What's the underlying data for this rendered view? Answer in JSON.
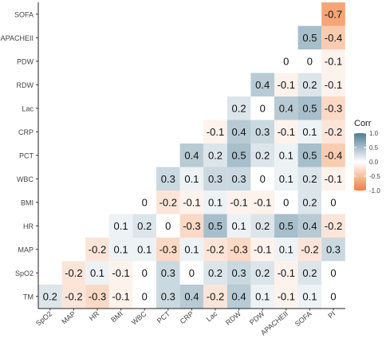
{
  "chart_data": {
    "type": "heatmap",
    "x_categories": [
      "SpO2",
      "MAP",
      "HR",
      "BMI",
      "WBC",
      "PCT",
      "CRP",
      "Lac",
      "RDW",
      "PDW",
      "APACHEII",
      "SOFA",
      "PI"
    ],
    "y_categories": [
      "TM",
      "SpO2",
      "MAP",
      "HR",
      "BMI",
      "WBC",
      "PCT",
      "CRP",
      "Lac",
      "RDW",
      "PDW",
      "APACHEII",
      "SOFA"
    ],
    "values": [
      [
        0.2,
        -0.2,
        -0.3,
        -0.1,
        0,
        0.3,
        0.4,
        -0.2,
        0.4,
        0.1,
        -0.1,
        0.1,
        0
      ],
      [
        null,
        -0.2,
        0.1,
        -0.1,
        0,
        0.3,
        0,
        0.2,
        0.3,
        0.2,
        -0.1,
        0.2,
        0
      ],
      [
        null,
        null,
        -0.2,
        0.1,
        0.1,
        -0.3,
        0.1,
        -0.2,
        -0.3,
        -0.1,
        0.1,
        -0.2,
        0.3
      ],
      [
        null,
        null,
        null,
        0.1,
        0.2,
        0,
        -0.3,
        0.5,
        0.1,
        0.2,
        0.5,
        0.4,
        -0.2
      ],
      [
        null,
        null,
        null,
        null,
        0,
        -0.2,
        -0.1,
        0.1,
        -0.1,
        -0.1,
        0,
        0.2,
        0
      ],
      [
        null,
        null,
        null,
        null,
        null,
        0.3,
        0.1,
        0.3,
        0.3,
        0,
        0.1,
        0.2,
        -0.1
      ],
      [
        null,
        null,
        null,
        null,
        null,
        null,
        0.4,
        0.2,
        0.5,
        0.2,
        0.1,
        0.5,
        -0.4
      ],
      [
        null,
        null,
        null,
        null,
        null,
        null,
        null,
        -0.1,
        0.4,
        0.3,
        -0.1,
        0.1,
        -0.2
      ],
      [
        null,
        null,
        null,
        null,
        null,
        null,
        null,
        null,
        0.2,
        0,
        0.4,
        0.5,
        -0.3
      ],
      [
        null,
        null,
        null,
        null,
        null,
        null,
        null,
        null,
        null,
        0.4,
        -0.1,
        0.2,
        -0.1
      ],
      [
        null,
        null,
        null,
        null,
        null,
        null,
        null,
        null,
        null,
        null,
        0,
        0,
        -0.1
      ],
      [
        null,
        null,
        null,
        null,
        null,
        null,
        null,
        null,
        null,
        null,
        null,
        0.5,
        -0.4
      ],
      [
        null,
        null,
        null,
        null,
        null,
        null,
        null,
        null,
        null,
        null,
        null,
        null,
        -0.7
      ]
    ],
    "legend": {
      "title": "Corr",
      "ticks": [
        "1.0",
        "0.5",
        "0.0",
        "-0.5",
        "-1.0"
      ],
      "tick_values": [
        1.0,
        0.5,
        0.0,
        -0.5,
        -1.0
      ],
      "position": "right"
    },
    "color_scale": {
      "low": "#f07f3c",
      "mid": "#ffffff",
      "high": "#4e7d96",
      "min": -1,
      "max": 1
    },
    "title": "",
    "xlabel": "",
    "ylabel": "",
    "grid": false
  }
}
